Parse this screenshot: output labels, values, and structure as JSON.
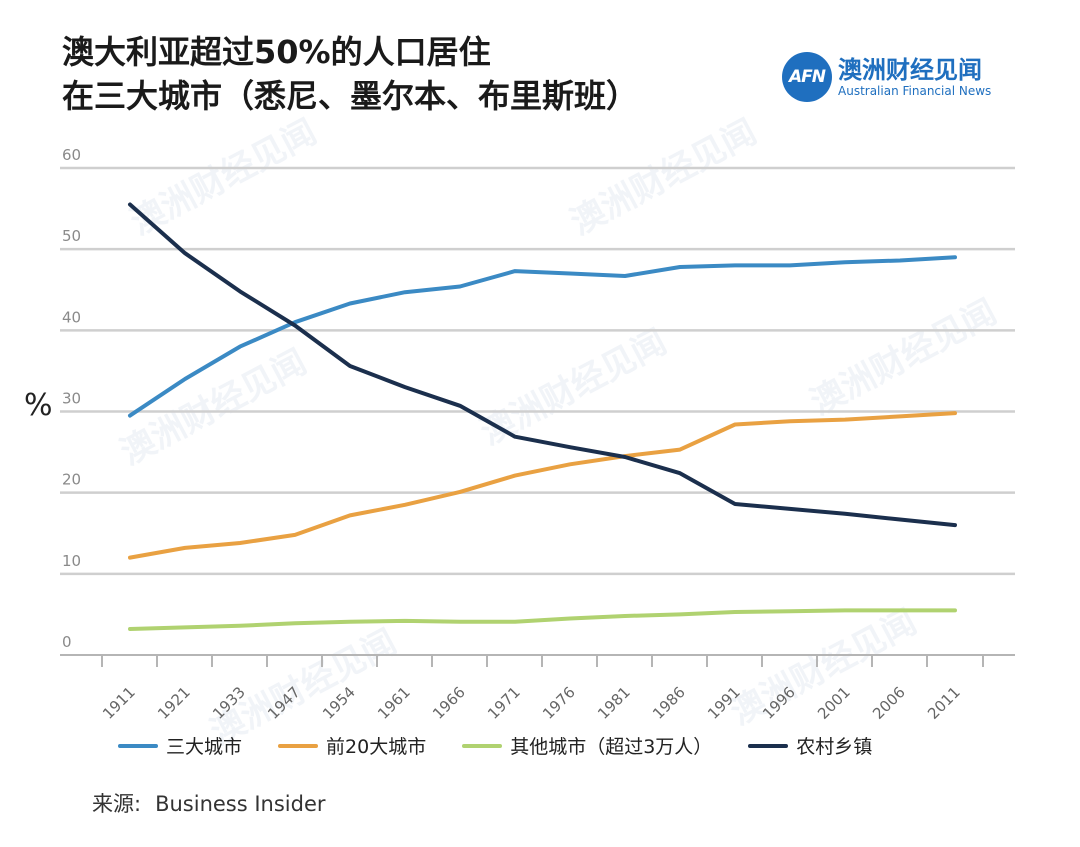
{
  "title_lines": [
    "澳大利亚超过50%的人口居住",
    "在三大城市（悉尼、墨尔本、布里斯班）"
  ],
  "logo": {
    "mark": "AFN",
    "name_cn": "澳洲财经见闻",
    "name_en": "Australian Financial News"
  },
  "y_unit": "%",
  "source_label": "来源:",
  "source_value": "Business Insider",
  "watermark": "澳洲财经见闻",
  "chart_data": {
    "type": "line",
    "title": "澳大利亚超过50%的人口居住在三大城市（悉尼、墨尔本、布里斯班）",
    "xlabel": "",
    "ylabel": "%",
    "ylim": [
      0,
      60
    ],
    "yticks": [
      "0",
      "10",
      "20",
      "30",
      "40",
      "50",
      "60"
    ],
    "categories": [
      "1911",
      "1921",
      "1933",
      "1947",
      "1954",
      "1961",
      "1966",
      "1971",
      "1976",
      "1981",
      "1986",
      "1991",
      "1996",
      "2001",
      "2006",
      "2011"
    ],
    "grid": true,
    "legend_position": "bottom",
    "series": [
      {
        "name": "三大城市",
        "color": "#3b8ac4",
        "values": [
          29.5,
          34,
          38,
          41,
          43.3,
          44.7,
          45.4,
          47.3,
          47,
          46.7,
          47.8,
          48,
          48,
          48.4,
          48.6,
          49
        ]
      },
      {
        "name": "前20大城市",
        "color": "#e9a142",
        "values": [
          12,
          13.2,
          13.8,
          14.8,
          17.2,
          18.5,
          20.1,
          22.1,
          23.5,
          24.5,
          25.3,
          28.4,
          28.8,
          29,
          29.4,
          29.8
        ]
      },
      {
        "name": "其他城市（超过3万人）",
        "color": "#b0d270",
        "values": [
          3.2,
          3.4,
          3.6,
          3.9,
          4.1,
          4.2,
          4.1,
          4.1,
          4.5,
          4.8,
          5,
          5.3,
          5.4,
          5.5,
          5.5,
          5.5
        ]
      },
      {
        "name": "农村乡镇",
        "color": "#1b2f4d",
        "values": [
          55.5,
          49.5,
          44.8,
          40.6,
          35.6,
          33,
          30.7,
          26.9,
          25.6,
          24.4,
          22.4,
          18.6,
          18,
          17.4,
          16.7,
          16
        ]
      }
    ]
  }
}
